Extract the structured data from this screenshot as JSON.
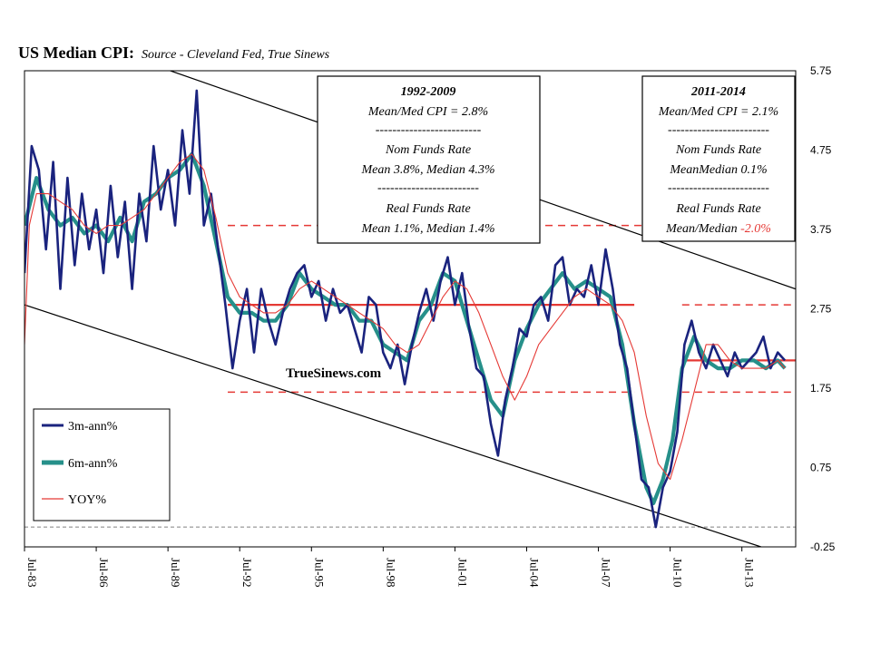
{
  "chart_data": {
    "type": "line",
    "title": "US Median CPI:",
    "subtitle": "Source - Cleveland Fed, True Sinews",
    "watermark": "TrueSinews.com",
    "y_axis": {
      "position": "right",
      "ticks": [
        "5.75",
        "4.75",
        "3.75",
        "2.75",
        "1.75",
        "0.75",
        "-0.25"
      ],
      "ylim": [
        -0.25,
        5.75
      ]
    },
    "x_axis": {
      "ticks": [
        "Jul-83",
        "Jul-86",
        "Jul-89",
        "Jul-92",
        "Jul-95",
        "Jul-98",
        "Jul-01",
        "Jul-04",
        "Jul-07",
        "Jul-10",
        "Jul-13"
      ],
      "xlim": [
        1983.5,
        2015.75
      ]
    },
    "legend": {
      "placement": "bottom-left",
      "entries": [
        "3m-ann%",
        "6m-ann%",
        "YOY%"
      ]
    },
    "colors": {
      "3m": "#1a237e",
      "6m": "#26908a",
      "yoy": "#e53935",
      "ref": "#e53935",
      "trend": "#000000",
      "zero": "#808080"
    },
    "series": [
      {
        "name": "3m-ann%",
        "x": [
          1983.5,
          1983.8,
          1984.1,
          1984.4,
          1984.7,
          1985.0,
          1985.3,
          1985.6,
          1985.9,
          1986.2,
          1986.5,
          1986.8,
          1987.1,
          1987.4,
          1987.7,
          1988.0,
          1988.3,
          1988.6,
          1988.9,
          1989.2,
          1989.5,
          1989.8,
          1990.1,
          1990.4,
          1990.7,
          1991.0,
          1991.3,
          1991.6,
          1991.9,
          1992.2,
          1992.5,
          1992.8,
          1993.1,
          1993.4,
          1993.7,
          1994.0,
          1994.3,
          1994.6,
          1994.9,
          1995.2,
          1995.5,
          1995.8,
          1996.1,
          1996.4,
          1996.7,
          1997.0,
          1997.3,
          1997.6,
          1997.9,
          1998.2,
          1998.5,
          1998.8,
          1999.1,
          1999.4,
          1999.7,
          2000.0,
          2000.3,
          2000.6,
          2000.9,
          2001.2,
          2001.5,
          2001.8,
          2002.1,
          2002.4,
          2002.7,
          2003.0,
          2003.3,
          2003.6,
          2003.9,
          2004.2,
          2004.5,
          2004.8,
          2005.1,
          2005.4,
          2005.7,
          2006.0,
          2006.3,
          2006.6,
          2006.9,
          2007.2,
          2007.5,
          2007.8,
          2008.1,
          2008.4,
          2008.7,
          2009.0,
          2009.3,
          2009.6,
          2009.9,
          2010.2,
          2010.5,
          2010.8,
          2011.1,
          2011.4,
          2011.7,
          2012.0,
          2012.3,
          2012.6,
          2012.9,
          2013.2,
          2013.5,
          2013.8,
          2014.1,
          2014.4,
          2014.7,
          2015.0,
          2015.3
        ],
        "values": [
          3.2,
          4.8,
          4.5,
          3.5,
          4.6,
          3.0,
          4.4,
          3.3,
          4.2,
          3.5,
          4.0,
          3.2,
          4.3,
          3.4,
          4.1,
          3.0,
          4.2,
          3.6,
          4.8,
          4.0,
          4.5,
          3.8,
          5.0,
          4.2,
          5.5,
          3.8,
          4.2,
          3.5,
          2.8,
          2.0,
          2.6,
          3.0,
          2.2,
          3.0,
          2.6,
          2.3,
          2.7,
          3.0,
          3.2,
          3.3,
          2.9,
          3.1,
          2.6,
          3.0,
          2.7,
          2.8,
          2.5,
          2.2,
          2.9,
          2.8,
          2.2,
          2.0,
          2.3,
          1.8,
          2.3,
          2.7,
          3.0,
          2.6,
          3.1,
          3.4,
          2.8,
          3.2,
          2.5,
          2.0,
          1.9,
          1.3,
          0.9,
          1.6,
          2.0,
          2.5,
          2.4,
          2.8,
          2.9,
          2.6,
          3.3,
          3.4,
          2.8,
          3.0,
          2.9,
          3.3,
          2.8,
          3.5,
          3.0,
          2.3,
          2.0,
          1.3,
          0.6,
          0.5,
          0.0,
          0.5,
          0.7,
          1.2,
          2.3,
          2.6,
          2.2,
          2.0,
          2.3,
          2.1,
          1.9,
          2.2,
          2.0,
          2.1,
          2.2,
          2.4,
          2.0,
          2.2,
          2.1
        ]
      },
      {
        "name": "6m-ann%",
        "x": [
          1983.5,
          1984.0,
          1984.5,
          1985.0,
          1985.5,
          1986.0,
          1986.5,
          1987.0,
          1987.5,
          1988.0,
          1988.5,
          1989.0,
          1989.5,
          1990.0,
          1990.5,
          1991.0,
          1991.5,
          1992.0,
          1992.5,
          1993.0,
          1993.5,
          1994.0,
          1994.5,
          1995.0,
          1995.5,
          1996.0,
          1996.5,
          1997.0,
          1997.5,
          1998.0,
          1998.5,
          1999.0,
          1999.5,
          2000.0,
          2000.5,
          2001.0,
          2001.5,
          2002.0,
          2002.5,
          2003.0,
          2003.5,
          2004.0,
          2004.5,
          2005.0,
          2005.5,
          2006.0,
          2006.5,
          2007.0,
          2007.5,
          2008.0,
          2008.5,
          2009.0,
          2009.5,
          2009.8,
          2010.2,
          2010.6,
          2011.0,
          2011.5,
          2012.0,
          2012.5,
          2013.0,
          2013.5,
          2014.0,
          2014.5,
          2015.0,
          2015.3
        ],
        "values": [
          3.8,
          4.4,
          4.0,
          3.8,
          3.9,
          3.7,
          3.8,
          3.6,
          3.9,
          3.6,
          4.1,
          4.2,
          4.4,
          4.5,
          4.7,
          4.3,
          3.6,
          2.9,
          2.7,
          2.7,
          2.6,
          2.6,
          2.8,
          3.2,
          3.0,
          2.9,
          2.8,
          2.8,
          2.6,
          2.6,
          2.3,
          2.2,
          2.1,
          2.6,
          2.8,
          3.2,
          3.1,
          2.6,
          2.1,
          1.6,
          1.4,
          2.1,
          2.5,
          2.8,
          3.0,
          3.2,
          3.0,
          3.1,
          3.0,
          2.9,
          2.3,
          1.3,
          0.5,
          0.3,
          0.6,
          1.1,
          2.0,
          2.4,
          2.1,
          2.0,
          2.0,
          2.1,
          2.1,
          2.0,
          2.1,
          2.0
        ]
      },
      {
        "name": "YOY%",
        "x": [
          1983.5,
          1983.7,
          1984.0,
          1984.5,
          1985.0,
          1985.5,
          1986.0,
          1986.5,
          1987.0,
          1987.5,
          1988.0,
          1988.5,
          1989.0,
          1989.5,
          1990.0,
          1990.5,
          1991.0,
          1991.5,
          1992.0,
          1992.5,
          1993.0,
          1993.5,
          1994.0,
          1994.5,
          1995.0,
          1995.5,
          1996.0,
          1996.5,
          1997.0,
          1997.5,
          1998.0,
          1998.5,
          1999.0,
          1999.5,
          2000.0,
          2000.5,
          2001.0,
          2001.5,
          2002.0,
          2002.5,
          2003.0,
          2003.5,
          2004.0,
          2004.5,
          2005.0,
          2005.5,
          2006.0,
          2006.5,
          2007.0,
          2007.5,
          2008.0,
          2008.5,
          2009.0,
          2009.5,
          2010.0,
          2010.5,
          2011.0,
          2011.5,
          2012.0,
          2012.5,
          2013.0,
          2013.5,
          2014.0,
          2014.5,
          2015.0,
          2015.3
        ],
        "values": [
          2.3,
          3.8,
          4.2,
          4.2,
          4.1,
          4.0,
          3.8,
          3.7,
          3.8,
          3.8,
          3.9,
          4.0,
          4.2,
          4.4,
          4.6,
          4.7,
          4.5,
          3.9,
          3.2,
          2.9,
          2.8,
          2.7,
          2.7,
          2.8,
          3.0,
          3.1,
          3.0,
          2.9,
          2.8,
          2.7,
          2.6,
          2.5,
          2.3,
          2.2,
          2.3,
          2.6,
          2.9,
          3.1,
          3.0,
          2.7,
          2.3,
          1.9,
          1.6,
          1.9,
          2.3,
          2.5,
          2.7,
          2.9,
          3.0,
          2.9,
          2.8,
          2.6,
          2.2,
          1.4,
          0.8,
          0.6,
          1.1,
          1.7,
          2.3,
          2.3,
          2.1,
          2.0,
          2.0,
          2.0,
          2.1,
          2.0
        ]
      }
    ],
    "reference_lines": [
      {
        "style": "solid",
        "value": 2.8,
        "x_range": [
          1992.0,
          2009.0
        ]
      },
      {
        "style": "dashed",
        "value": 3.8,
        "x_range": [
          1992.0,
          2015.75
        ]
      },
      {
        "style": "dashed",
        "value": 1.7,
        "x_range": [
          1992.0,
          2009.0
        ]
      },
      {
        "style": "dashed",
        "value": 2.8,
        "x_range": [
          2011.0,
          2015.75
        ]
      },
      {
        "style": "solid",
        "value": 2.1,
        "x_range": [
          2011.0,
          2015.75
        ]
      },
      {
        "style": "dashed",
        "value": 1.7,
        "x_range": [
          2011.0,
          2015.75
        ]
      }
    ],
    "trend_channel": [
      {
        "from": [
          1989.6,
          5.75
        ],
        "to": [
          2015.75,
          3.0
        ]
      },
      {
        "from": [
          1983.5,
          2.8
        ],
        "to": [
          2014.3,
          -0.25
        ]
      }
    ],
    "zero_line": {
      "value": 0.0
    }
  },
  "box_left": {
    "lines": [
      {
        "text": "1992-2009"
      },
      {
        "text": "Mean/Med CPI = 2.8%"
      },
      {
        "text": "-------------------------"
      },
      {
        "text": "Nom Funds Rate"
      },
      {
        "text": "Mean 3.8%, Median 4.3%"
      },
      {
        "text": "------------------------"
      },
      {
        "text": "Real Funds Rate"
      },
      {
        "text": "Mean 1.1%, Median 1.4%"
      }
    ]
  },
  "box_right": {
    "lines": [
      {
        "text": "2011-2014"
      },
      {
        "text": "Mean/Med CPI = 2.1%"
      },
      {
        "text": "------------------------"
      },
      {
        "text": "Nom Funds Rate"
      },
      {
        "text": "MeanMedian 0.1%"
      },
      {
        "text": "------------------------"
      },
      {
        "text": "Real Funds Rate"
      },
      {
        "text": "Mean/Median ",
        "highlight": "-2.0%"
      }
    ]
  }
}
